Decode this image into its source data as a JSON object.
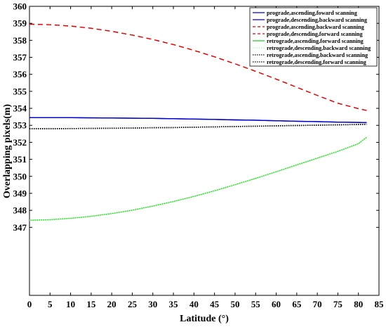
{
  "chart_data": {
    "type": "line",
    "title": "",
    "xlabel": "Latitude (°)",
    "ylabel": "Overlapping pixels(m)",
    "xlim": [
      0,
      85
    ],
    "ylim": [
      343,
      360
    ],
    "xticks": [
      0,
      5,
      10,
      15,
      20,
      25,
      30,
      35,
      40,
      45,
      50,
      55,
      60,
      65,
      70,
      75,
      80,
      85
    ],
    "yticks": [
      347,
      348,
      349,
      350,
      351,
      352,
      353,
      354,
      355,
      356,
      357,
      358,
      359,
      360
    ],
    "grid": false,
    "legend_position": "top-right",
    "x": [
      0,
      5,
      10,
      15,
      20,
      25,
      30,
      35,
      40,
      45,
      50,
      55,
      60,
      65,
      70,
      75,
      80,
      82
    ],
    "series": [
      {
        "name": "prograde,ascending,foward scanning",
        "color": "#0000cc",
        "style": "solid",
        "values": [
          353.45,
          353.45,
          353.45,
          353.44,
          353.43,
          353.42,
          353.41,
          353.39,
          353.37,
          353.35,
          353.32,
          353.3,
          353.27,
          353.24,
          353.22,
          353.19,
          353.17,
          353.16
        ]
      },
      {
        "name": "prograde,descending,backward scanning",
        "color": "#0000cc",
        "style": "solid",
        "values": [
          353.45,
          353.45,
          353.45,
          353.44,
          353.43,
          353.42,
          353.41,
          353.39,
          353.37,
          353.35,
          353.32,
          353.3,
          353.27,
          353.24,
          353.22,
          353.19,
          353.17,
          353.16
        ]
      },
      {
        "name": "prograde,ascending,backward scanning",
        "color": "#e00000",
        "style": "dashed",
        "values": [
          358.95,
          358.92,
          358.84,
          358.71,
          358.53,
          358.31,
          358.05,
          357.75,
          357.41,
          357.03,
          356.62,
          356.18,
          355.72,
          355.24,
          354.76,
          354.3,
          353.98,
          353.88
        ]
      },
      {
        "name": "prograde,descending,forward scanning",
        "color": "#e00000",
        "style": "dashed",
        "values": [
          358.95,
          358.92,
          358.84,
          358.71,
          358.53,
          358.31,
          358.05,
          357.75,
          357.41,
          357.03,
          356.62,
          356.18,
          355.72,
          355.24,
          354.76,
          354.3,
          353.98,
          353.88
        ]
      },
      {
        "name": "retrograde,ascending,forward scanning",
        "color": "#22cc22",
        "style": "solid",
        "values": [
          347.42,
          347.45,
          347.53,
          347.65,
          347.81,
          348.01,
          348.25,
          348.52,
          348.82,
          349.15,
          349.51,
          349.88,
          350.27,
          350.67,
          351.07,
          351.47,
          351.92,
          352.3
        ]
      },
      {
        "name": "retrograde,descending,backward scanning",
        "color": "#aaffaa",
        "style": "dotted",
        "values": [
          347.42,
          347.45,
          347.53,
          347.65,
          347.81,
          348.01,
          348.25,
          348.52,
          348.82,
          349.15,
          349.51,
          349.88,
          350.27,
          350.67,
          351.07,
          351.47,
          351.92,
          352.3
        ]
      },
      {
        "name": "retrograde,ascending,backward scanning",
        "color": "#000000",
        "style": "dotted",
        "values": [
          352.8,
          352.8,
          352.81,
          352.82,
          352.83,
          352.84,
          352.86,
          352.87,
          352.89,
          352.91,
          352.93,
          352.95,
          352.97,
          352.99,
          353.01,
          353.03,
          353.05,
          353.06
        ]
      },
      {
        "name": "retrograde,descending,forward scanning",
        "color": "#000000",
        "style": "dotted",
        "values": [
          352.8,
          352.8,
          352.81,
          352.82,
          352.83,
          352.84,
          352.86,
          352.87,
          352.89,
          352.91,
          352.93,
          352.95,
          352.97,
          352.99,
          353.01,
          353.03,
          353.05,
          353.06
        ]
      }
    ]
  }
}
